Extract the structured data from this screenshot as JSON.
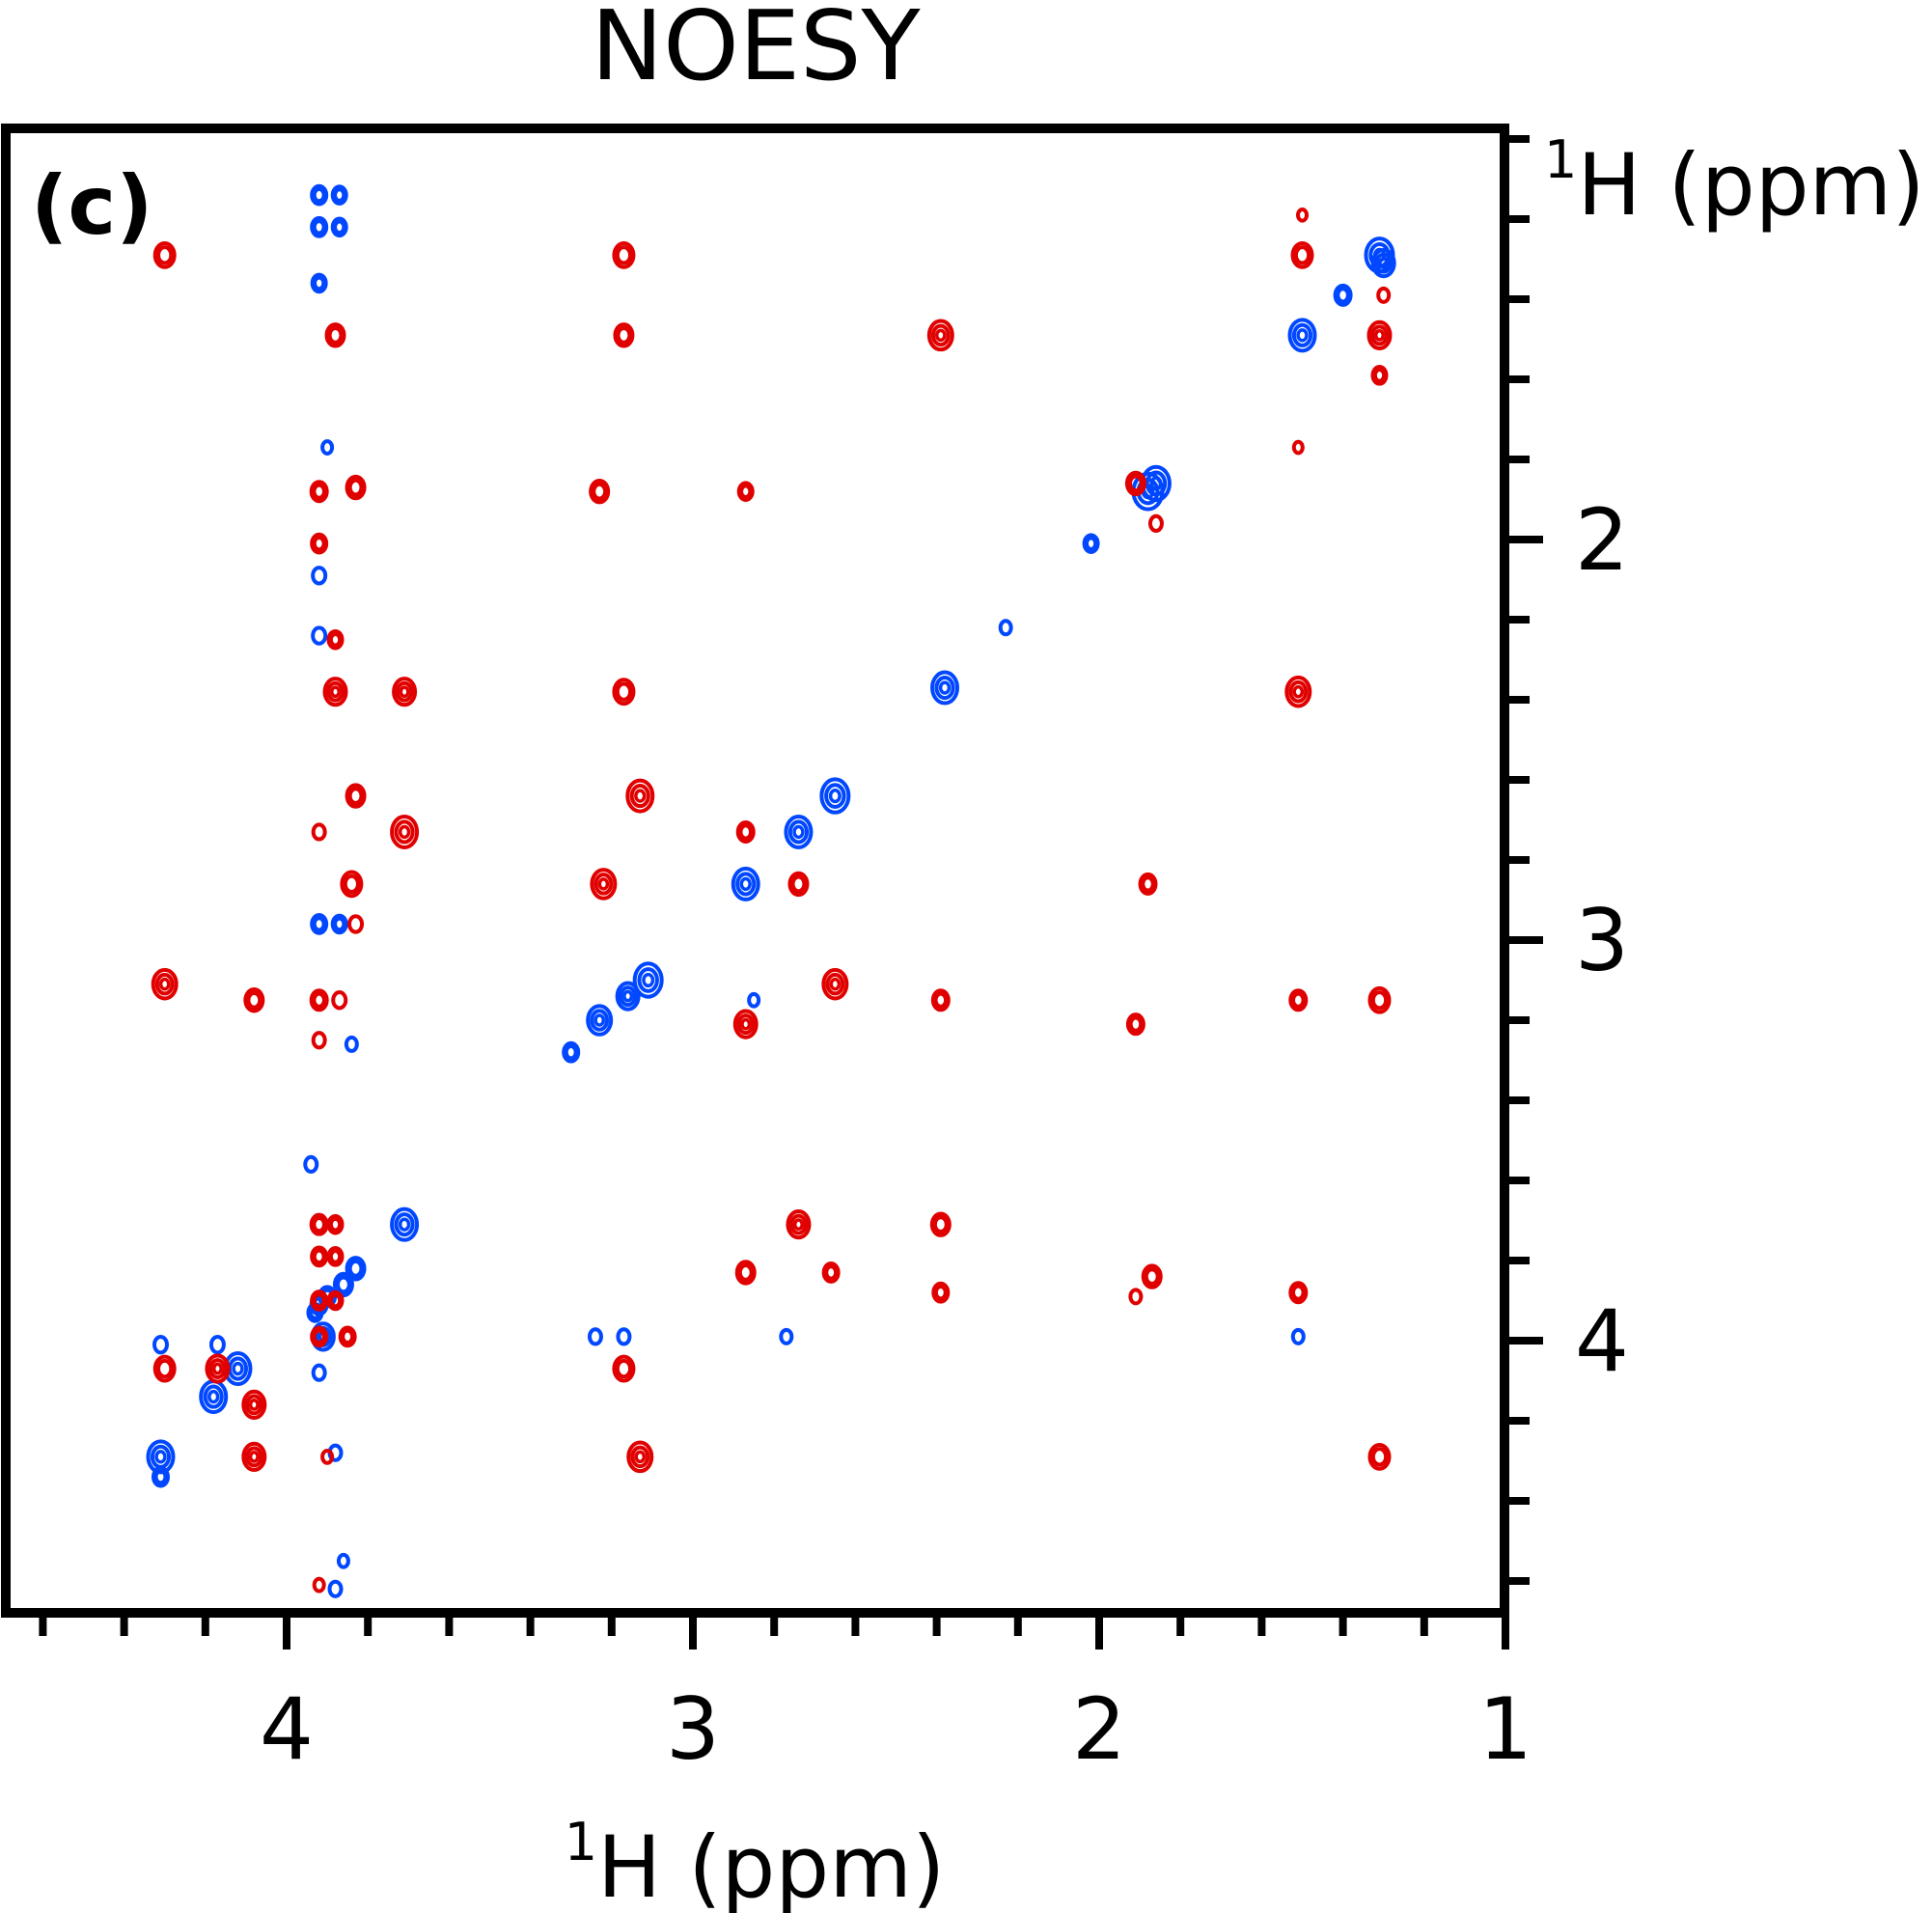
{
  "chart_data": {
    "type": "scatter",
    "title": "NOESY",
    "panel_label": "(c)",
    "xlabel": {
      "sup": "1",
      "text": "H (ppm)"
    },
    "ylabel": {
      "sup": "1",
      "text": "H (ppm)"
    },
    "xlim": [
      4.6,
      1.0
    ],
    "ylim": [
      1.0,
      4.7
    ],
    "x_ticks": [
      4,
      3,
      2,
      1
    ],
    "y_ticks": [
      2,
      3,
      4
    ],
    "x_minor_step": 0.2,
    "y_minor_step": 0.2,
    "grid": false,
    "colors": {
      "positive": "#0047ff",
      "negative": "#e00000"
    },
    "series": [
      {
        "sign": "positive",
        "color": "#0047ff",
        "peaks": [
          {
            "x": 1.31,
            "y": 1.29,
            "s": 1.1
          },
          {
            "x": 1.3,
            "y": 1.31,
            "s": 0.8
          },
          {
            "x": 1.4,
            "y": 1.39,
            "s": 0.5
          },
          {
            "x": 1.5,
            "y": 1.49,
            "s": 1.0
          },
          {
            "x": 1.88,
            "y": 1.88,
            "s": 1.2
          },
          {
            "x": 1.86,
            "y": 1.86,
            "s": 1.1
          },
          {
            "x": 2.02,
            "y": 2.01,
            "s": 0.4
          },
          {
            "x": 2.23,
            "y": 2.22,
            "s": 0.25
          },
          {
            "x": 2.38,
            "y": 2.37,
            "s": 1.0
          },
          {
            "x": 2.65,
            "y": 2.64,
            "s": 1.1
          },
          {
            "x": 2.74,
            "y": 2.73,
            "s": 1.0
          },
          {
            "x": 2.87,
            "y": 2.86,
            "s": 1.0
          },
          {
            "x": 3.11,
            "y": 3.1,
            "s": 1.1
          },
          {
            "x": 3.16,
            "y": 3.14,
            "s": 0.8
          },
          {
            "x": 3.23,
            "y": 3.2,
            "s": 0.9
          },
          {
            "x": 3.3,
            "y": 3.28,
            "s": 0.45
          },
          {
            "x": 3.71,
            "y": 3.71,
            "s": 1.0
          },
          {
            "x": 3.83,
            "y": 3.82,
            "s": 0.6
          },
          {
            "x": 3.86,
            "y": 3.86,
            "s": 0.6
          },
          {
            "x": 3.9,
            "y": 3.89,
            "s": 0.5
          },
          {
            "x": 3.92,
            "y": 3.91,
            "s": 0.5
          },
          {
            "x": 3.93,
            "y": 3.93,
            "s": 0.4
          },
          {
            "x": 3.91,
            "y": 3.99,
            "s": 0.8
          },
          {
            "x": 4.12,
            "y": 4.07,
            "s": 1.0
          },
          {
            "x": 4.18,
            "y": 4.14,
            "s": 1.0
          },
          {
            "x": 4.31,
            "y": 4.29,
            "s": 1.0
          },
          {
            "x": 3.88,
            "y": 4.28,
            "s": 0.3
          },
          {
            "x": 3.88,
            "y": 4.62,
            "s": 0.3
          },
          {
            "x": 3.86,
            "y": 4.55,
            "s": 0.2
          },
          {
            "x": 3.92,
            "y": 1.14,
            "s": 0.45
          },
          {
            "x": 3.87,
            "y": 1.14,
            "s": 0.4
          },
          {
            "x": 3.92,
            "y": 1.22,
            "s": 0.45
          },
          {
            "x": 3.87,
            "y": 1.22,
            "s": 0.4
          },
          {
            "x": 3.92,
            "y": 1.36,
            "s": 0.4
          },
          {
            "x": 3.9,
            "y": 1.77,
            "s": 0.2
          },
          {
            "x": 3.92,
            "y": 2.09,
            "s": 0.35
          },
          {
            "x": 3.92,
            "y": 2.24,
            "s": 0.35
          },
          {
            "x": 3.92,
            "y": 2.96,
            "s": 0.45
          },
          {
            "x": 3.87,
            "y": 2.96,
            "s": 0.4
          },
          {
            "x": 3.84,
            "y": 3.26,
            "s": 0.25
          },
          {
            "x": 3.94,
            "y": 3.56,
            "s": 0.3
          },
          {
            "x": 3.92,
            "y": 4.08,
            "s": 0.3
          },
          {
            "x": 3.24,
            "y": 3.99,
            "s": 0.3
          },
          {
            "x": 3.17,
            "y": 3.99,
            "s": 0.3
          },
          {
            "x": 2.77,
            "y": 3.99,
            "s": 0.25
          },
          {
            "x": 1.51,
            "y": 3.99,
            "s": 0.25
          },
          {
            "x": 4.31,
            "y": 4.01,
            "s": 0.35
          },
          {
            "x": 4.17,
            "y": 4.01,
            "s": 0.35
          },
          {
            "x": 2.85,
            "y": 3.15,
            "s": 0.2
          },
          {
            "x": 4.31,
            "y": 4.34,
            "s": 0.45
          }
        ]
      },
      {
        "sign": "negative",
        "color": "#e00000",
        "peaks": [
          {
            "x": 4.3,
            "y": 1.29,
            "s": 0.7
          },
          {
            "x": 3.17,
            "y": 1.29,
            "s": 0.7
          },
          {
            "x": 1.5,
            "y": 1.29,
            "s": 0.7
          },
          {
            "x": 1.3,
            "y": 1.39,
            "s": 0.25
          },
          {
            "x": 1.5,
            "y": 1.19,
            "s": 0.15
          },
          {
            "x": 3.88,
            "y": 1.49,
            "s": 0.6
          },
          {
            "x": 3.17,
            "y": 1.49,
            "s": 0.6
          },
          {
            "x": 2.39,
            "y": 1.49,
            "s": 0.9
          },
          {
            "x": 1.31,
            "y": 1.49,
            "s": 0.8
          },
          {
            "x": 1.31,
            "y": 1.59,
            "s": 0.4
          },
          {
            "x": 3.92,
            "y": 1.88,
            "s": 0.5
          },
          {
            "x": 3.83,
            "y": 1.87,
            "s": 0.6
          },
          {
            "x": 3.23,
            "y": 1.88,
            "s": 0.6
          },
          {
            "x": 2.87,
            "y": 1.88,
            "s": 0.4
          },
          {
            "x": 1.91,
            "y": 1.86,
            "s": 0.6
          },
          {
            "x": 1.86,
            "y": 1.96,
            "s": 0.3
          },
          {
            "x": 1.51,
            "y": 1.77,
            "s": 0.15
          },
          {
            "x": 3.92,
            "y": 2.01,
            "s": 0.45
          },
          {
            "x": 3.88,
            "y": 2.25,
            "s": 0.4
          },
          {
            "x": 3.88,
            "y": 2.38,
            "s": 0.8
          },
          {
            "x": 3.71,
            "y": 2.38,
            "s": 0.8
          },
          {
            "x": 3.17,
            "y": 2.38,
            "s": 0.7
          },
          {
            "x": 1.51,
            "y": 2.38,
            "s": 0.9
          },
          {
            "x": 3.83,
            "y": 2.64,
            "s": 0.6
          },
          {
            "x": 3.13,
            "y": 2.64,
            "s": 1.0
          },
          {
            "x": 3.92,
            "y": 2.73,
            "s": 0.3
          },
          {
            "x": 3.71,
            "y": 2.73,
            "s": 1.0
          },
          {
            "x": 2.87,
            "y": 2.73,
            "s": 0.5
          },
          {
            "x": 3.84,
            "y": 2.86,
            "s": 0.7
          },
          {
            "x": 3.22,
            "y": 2.86,
            "s": 0.9
          },
          {
            "x": 2.74,
            "y": 2.86,
            "s": 0.6
          },
          {
            "x": 1.88,
            "y": 2.86,
            "s": 0.5
          },
          {
            "x": 3.83,
            "y": 2.96,
            "s": 0.35
          },
          {
            "x": 4.3,
            "y": 3.11,
            "s": 0.9
          },
          {
            "x": 4.08,
            "y": 3.15,
            "s": 0.6
          },
          {
            "x": 3.92,
            "y": 3.15,
            "s": 0.5
          },
          {
            "x": 3.87,
            "y": 3.15,
            "s": 0.35
          },
          {
            "x": 2.65,
            "y": 3.11,
            "s": 0.9
          },
          {
            "x": 2.39,
            "y": 3.15,
            "s": 0.5
          },
          {
            "x": 1.51,
            "y": 3.15,
            "s": 0.5
          },
          {
            "x": 1.31,
            "y": 3.15,
            "s": 0.7
          },
          {
            "x": 2.87,
            "y": 3.21,
            "s": 0.8
          },
          {
            "x": 1.91,
            "y": 3.21,
            "s": 0.5
          },
          {
            "x": 3.92,
            "y": 3.25,
            "s": 0.3
          },
          {
            "x": 3.92,
            "y": 3.71,
            "s": 0.5
          },
          {
            "x": 3.88,
            "y": 3.71,
            "s": 0.4
          },
          {
            "x": 2.74,
            "y": 3.71,
            "s": 0.8
          },
          {
            "x": 2.39,
            "y": 3.71,
            "s": 0.6
          },
          {
            "x": 3.92,
            "y": 3.79,
            "s": 0.45
          },
          {
            "x": 3.88,
            "y": 3.79,
            "s": 0.4
          },
          {
            "x": 2.87,
            "y": 3.83,
            "s": 0.6
          },
          {
            "x": 2.66,
            "y": 3.83,
            "s": 0.45
          },
          {
            "x": 1.87,
            "y": 3.84,
            "s": 0.6
          },
          {
            "x": 3.92,
            "y": 3.9,
            "s": 0.45
          },
          {
            "x": 3.88,
            "y": 3.9,
            "s": 0.4
          },
          {
            "x": 2.39,
            "y": 3.88,
            "s": 0.45
          },
          {
            "x": 1.91,
            "y": 3.89,
            "s": 0.25
          },
          {
            "x": 1.51,
            "y": 3.88,
            "s": 0.5
          },
          {
            "x": 3.92,
            "y": 3.99,
            "s": 0.45
          },
          {
            "x": 3.85,
            "y": 3.99,
            "s": 0.45
          },
          {
            "x": 4.3,
            "y": 4.07,
            "s": 0.7
          },
          {
            "x": 4.17,
            "y": 4.07,
            "s": 0.8
          },
          {
            "x": 3.17,
            "y": 4.07,
            "s": 0.7
          },
          {
            "x": 4.08,
            "y": 4.16,
            "s": 0.8
          },
          {
            "x": 4.08,
            "y": 4.29,
            "s": 0.8
          },
          {
            "x": 3.13,
            "y": 4.29,
            "s": 0.9
          },
          {
            "x": 1.31,
            "y": 4.29,
            "s": 0.7
          },
          {
            "x": 3.9,
            "y": 4.29,
            "s": 0.2
          },
          {
            "x": 3.92,
            "y": 4.61,
            "s": 0.2
          }
        ]
      }
    ]
  }
}
